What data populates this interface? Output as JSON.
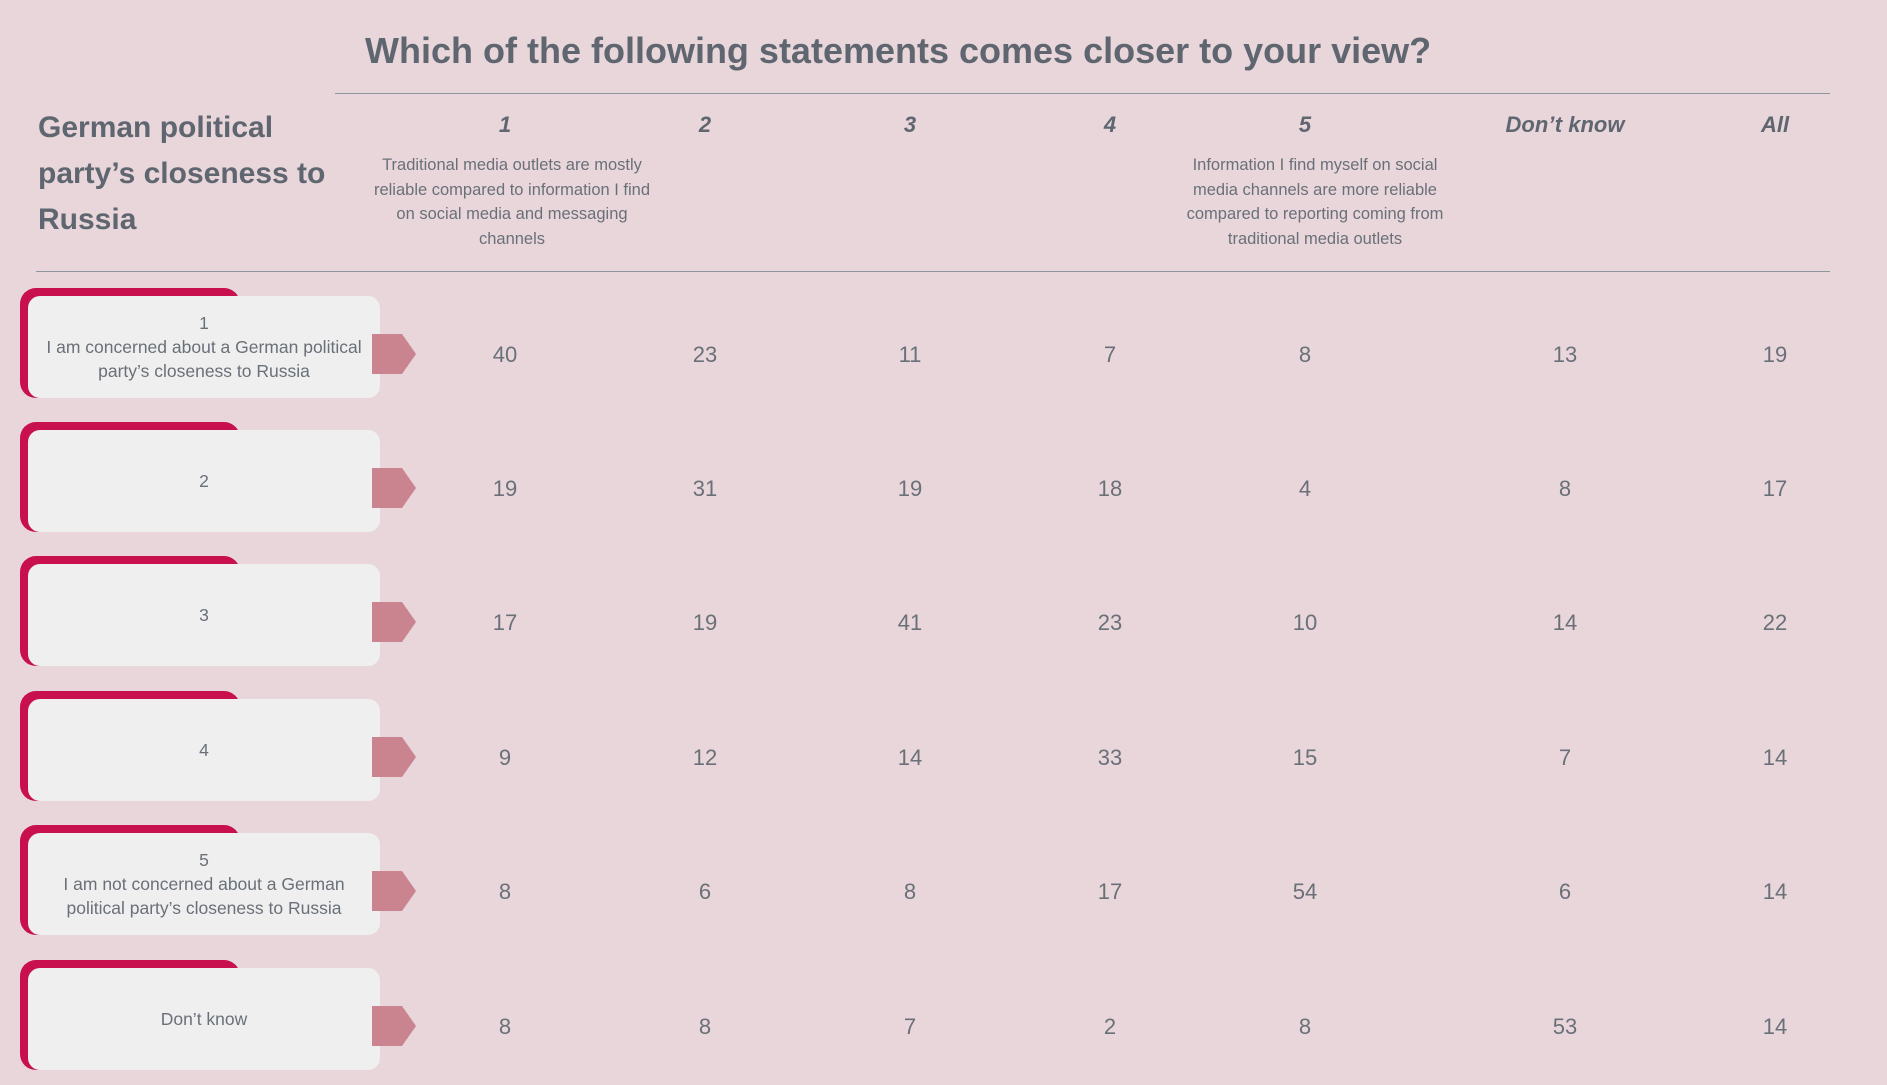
{
  "title": "Which of the following statements comes closer to your view?",
  "row_header": "German political party’s closeness to Russia",
  "colors": {
    "background": "#e8d6da",
    "card_accent": "#c8104f",
    "card_face": "#efefef",
    "arrow": "#c9848f",
    "text": "#5f6670"
  },
  "columns": [
    {
      "label": "1",
      "desc": "Traditional media outlets are mostly reliable compared to information I find on social media and messaging channels"
    },
    {
      "label": "2",
      "desc": ""
    },
    {
      "label": "3",
      "desc": ""
    },
    {
      "label": "4",
      "desc": ""
    },
    {
      "label": "5",
      "desc": "Information I find myself on social media channels are more reliable compared to reporting coming from traditional media outlets"
    },
    {
      "label": "Don’t know",
      "desc": ""
    },
    {
      "label": "All",
      "desc": ""
    }
  ],
  "rows": [
    {
      "label": "1\nI am concerned about a German political party’s closeness to Russia",
      "values": [
        "40",
        "23",
        "11",
        "7",
        "8",
        "13",
        "19"
      ]
    },
    {
      "label": "2",
      "values": [
        "19",
        "31",
        "19",
        "18",
        "4",
        "8",
        "17"
      ]
    },
    {
      "label": "3",
      "values": [
        "17",
        "19",
        "41",
        "23",
        "10",
        "14",
        "22"
      ]
    },
    {
      "label": "4",
      "values": [
        "9",
        "12",
        "14",
        "33",
        "15",
        "7",
        "14"
      ]
    },
    {
      "label": "5\nI am not concerned about a German political party’s closeness to Russia",
      "values": [
        "8",
        "6",
        "8",
        "17",
        "54",
        "6",
        "14"
      ]
    },
    {
      "label": "Don’t know",
      "values": [
        "8",
        "8",
        "7",
        "2",
        "8",
        "53",
        "14"
      ]
    }
  ],
  "chart_data": {
    "type": "table",
    "title": "Which of the following statements comes closer to your view?",
    "row_variable": "German political party’s closeness to Russia",
    "categories": [
      "1",
      "2",
      "3",
      "4",
      "5",
      "Don’t know",
      "All"
    ],
    "series": [
      {
        "name": "1 — I am concerned about a German political party’s closeness to Russia",
        "values": [
          40,
          23,
          11,
          7,
          8,
          13,
          19
        ]
      },
      {
        "name": "2",
        "values": [
          19,
          31,
          19,
          18,
          4,
          8,
          17
        ]
      },
      {
        "name": "3",
        "values": [
          17,
          19,
          41,
          23,
          10,
          14,
          22
        ]
      },
      {
        "name": "4",
        "values": [
          9,
          12,
          14,
          33,
          15,
          7,
          14
        ]
      },
      {
        "name": "5 — I am not concerned about a German political party’s closeness to Russia",
        "values": [
          8,
          6,
          8,
          17,
          54,
          6,
          14
        ]
      },
      {
        "name": "Don’t know",
        "values": [
          8,
          8,
          7,
          2,
          8,
          53,
          14
        ]
      }
    ]
  }
}
